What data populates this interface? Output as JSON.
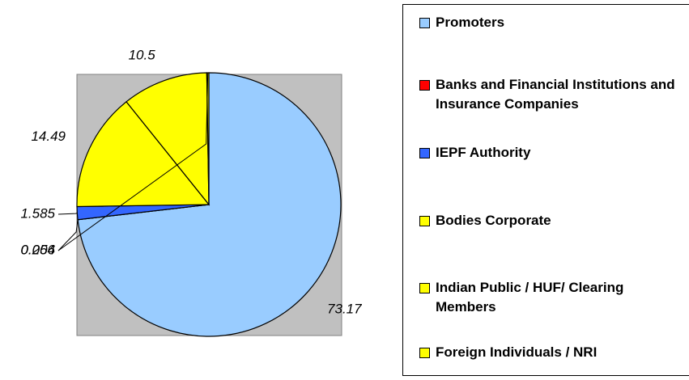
{
  "chart_data": {
    "type": "pie",
    "categories": [
      "Promoters",
      "Banks and Financial Institutions and Insurance Companies",
      "IEPF Authority",
      "Bodies Corporate",
      "Indian Public / HUF/ Clearing Members",
      "Foreign Individuals / NRI"
    ],
    "values": [
      73.17,
      0.004,
      1.585,
      14.49,
      10.5,
      0.256
    ],
    "colors": [
      "#99ccff",
      "#ff0000",
      "#3366ff",
      "#ffff00",
      "#ffff00",
      "#ffff00"
    ],
    "legend": "right"
  }
}
